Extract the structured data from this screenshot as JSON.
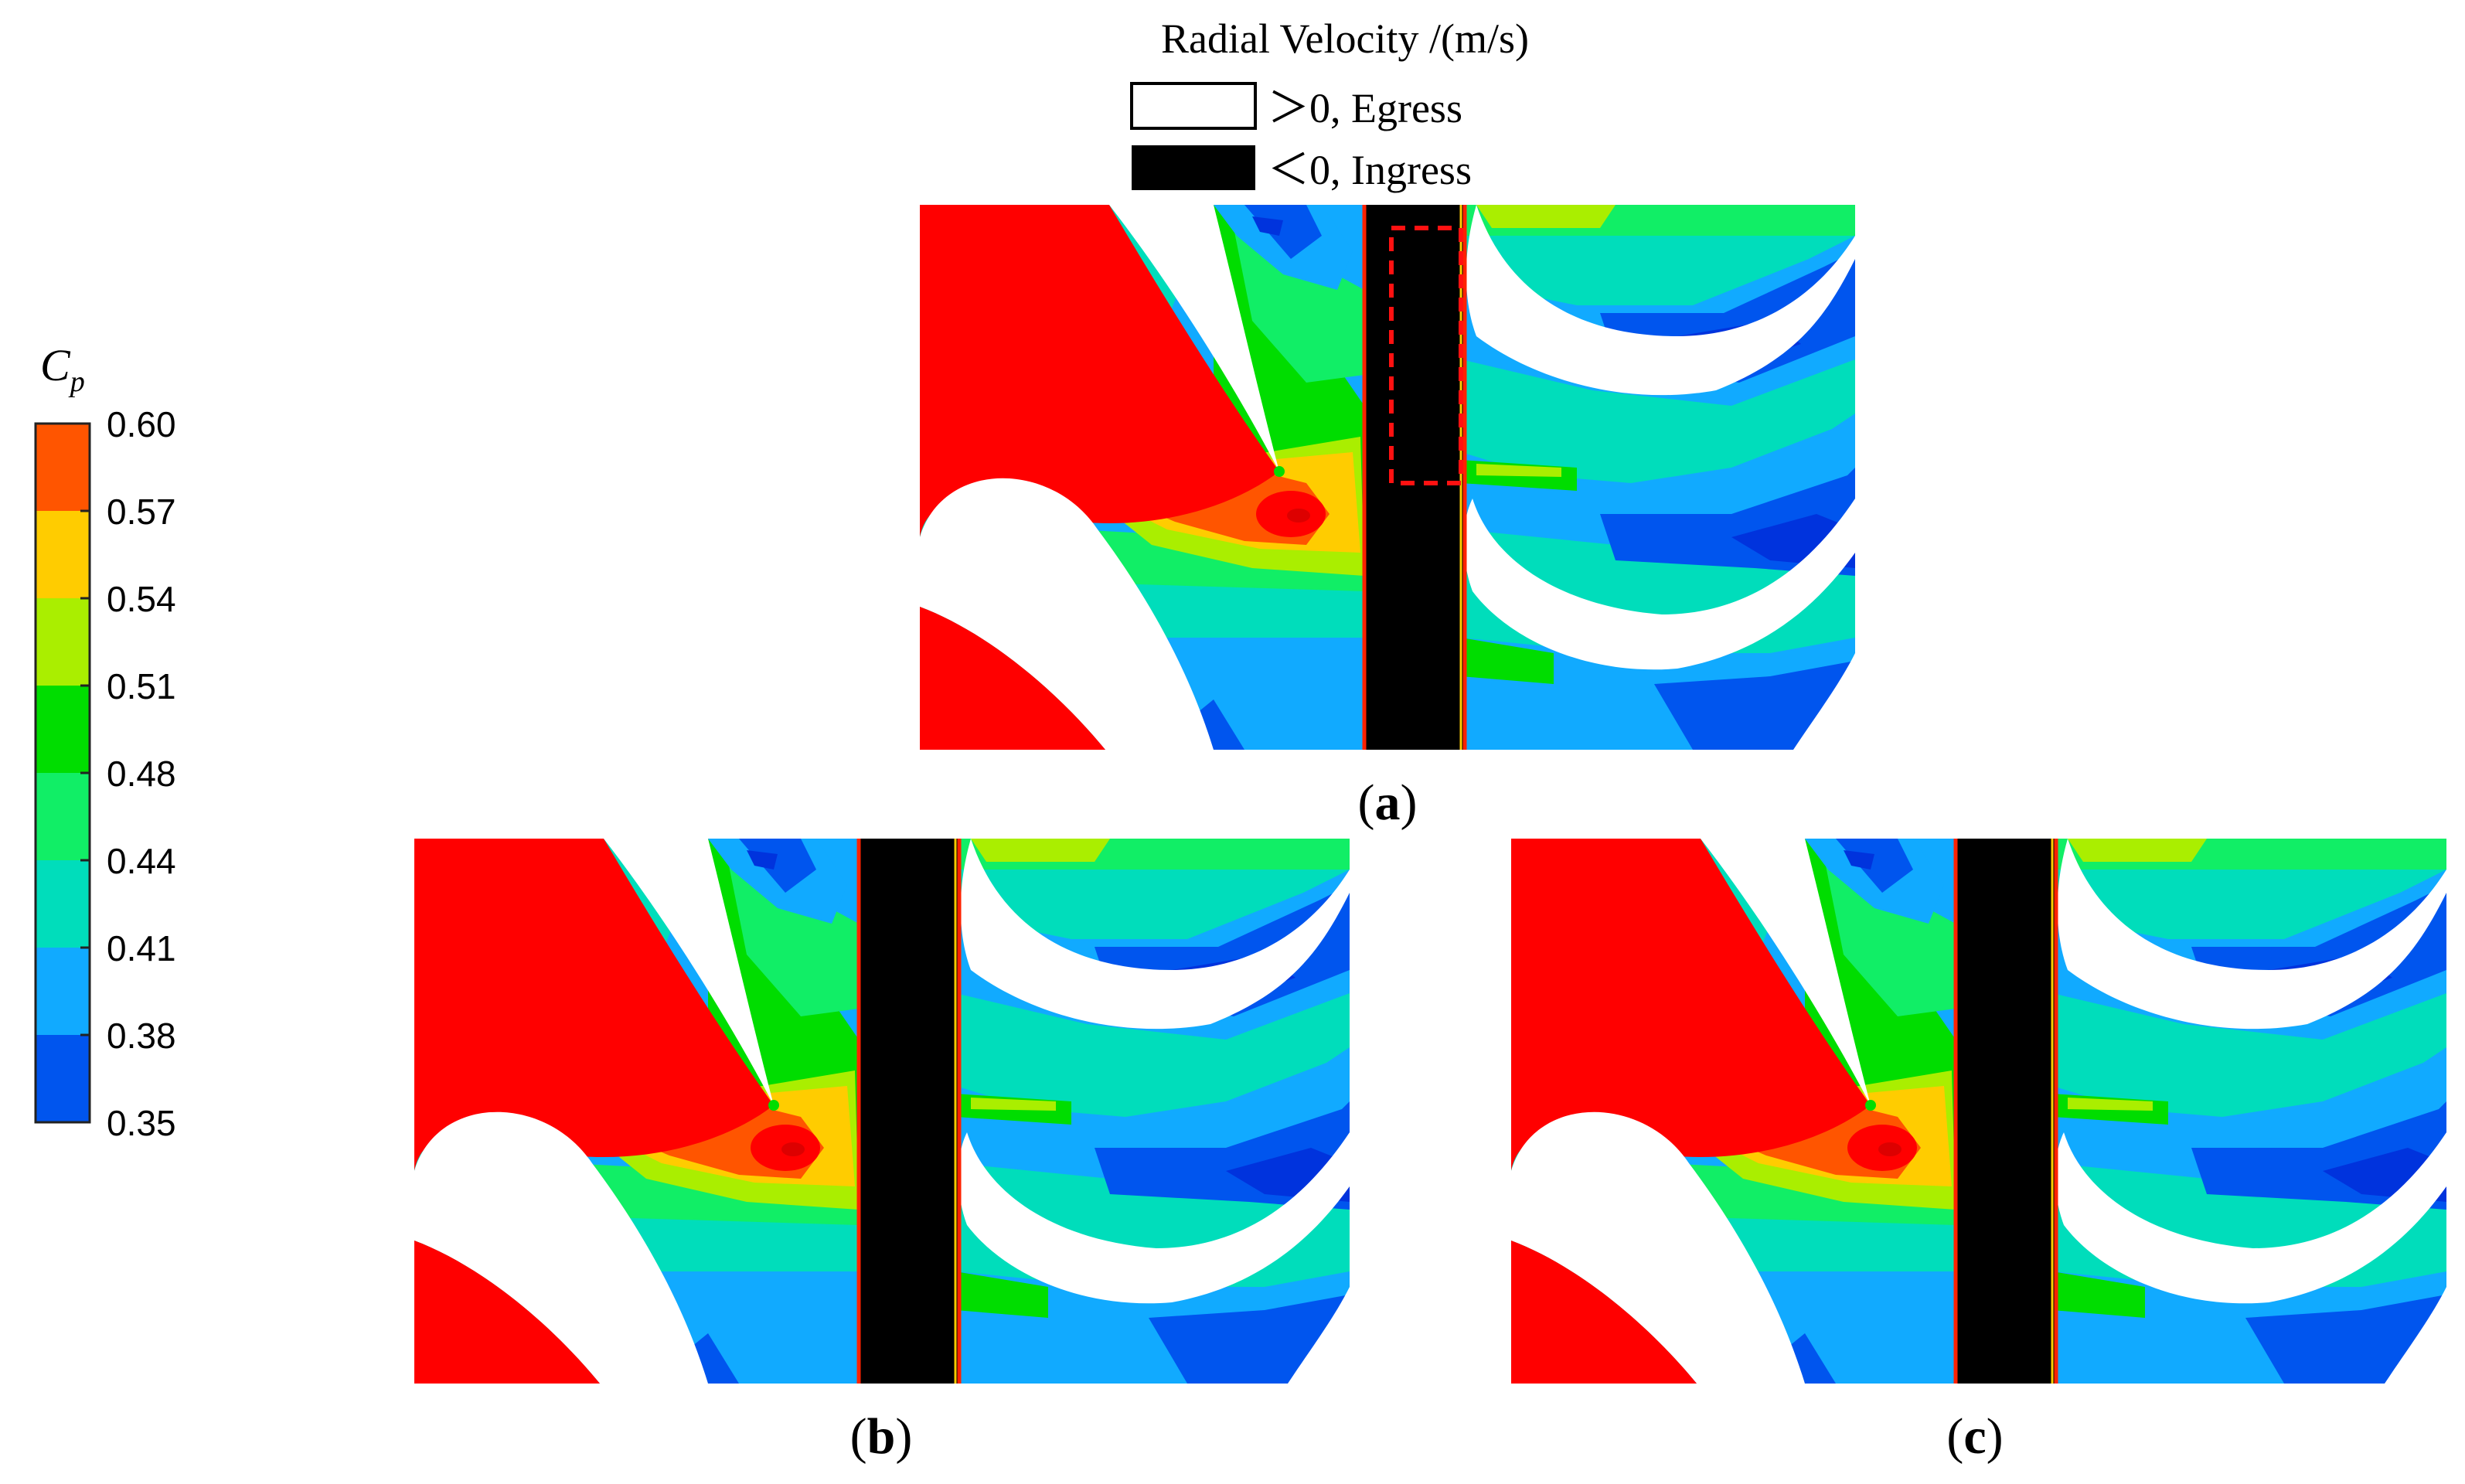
{
  "radial_legend": {
    "title": "Radial Velocity /(m/s)",
    "egress_label": "＞0, Egress",
    "ingress_label": "＜0, Ingress",
    "egress_color": "#ffffff",
    "ingress_color": "#000000"
  },
  "cp_legend": {
    "symbol": "C",
    "subscript": "p",
    "ticks": [
      "0.60",
      "0.57",
      "0.54",
      "0.51",
      "0.48",
      "0.44",
      "0.41",
      "0.38",
      "0.35"
    ],
    "colors": [
      "#ff5500",
      "#ffcc00",
      "#aaee00",
      "#00dd00",
      "#11ee66",
      "#00ddbb",
      "#11aaff",
      "#0055ee"
    ]
  },
  "contour_palette": {
    "high": "#ff0000",
    "orange": "#ff5500",
    "yellow": "#ffcc00",
    "lime": "#aaee00",
    "green": "#00dd00",
    "mint": "#11ee66",
    "teal": "#00ddbb",
    "sky": "#11aaff",
    "blue": "#0055ee",
    "deep": "#0033dd"
  },
  "panels": [
    {
      "label_open": "(",
      "label_letter": "a",
      "label_close": ")",
      "highlight": true
    },
    {
      "label_open": "(",
      "label_letter": "b",
      "label_close": ")",
      "highlight": false
    },
    {
      "label_open": "(",
      "label_letter": "c",
      "label_close": ")",
      "highlight": false
    }
  ]
}
